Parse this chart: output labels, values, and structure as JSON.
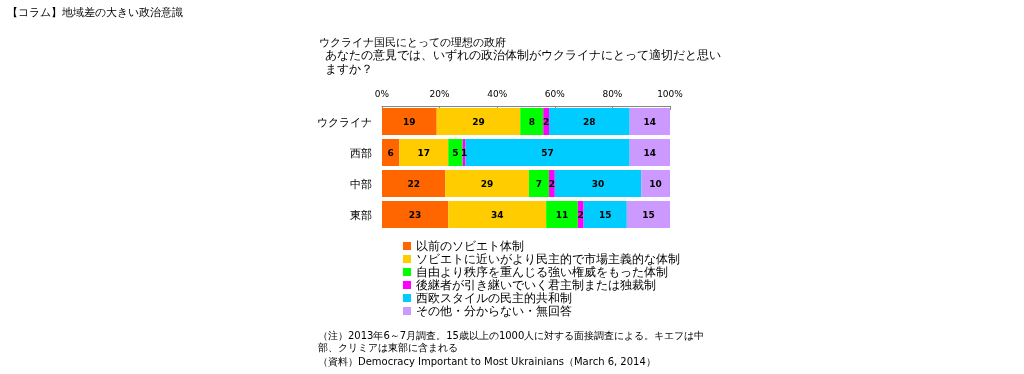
{
  "chart_data": {
    "type": "bar",
    "orientation": "horizontal",
    "stacked": true,
    "title": "【コラム】地域差の大きい政治意識",
    "subtitle": "ウクライナ国民にとっての理想の政府",
    "annotations": [
      "あなたの意見では、いずれの政治体制がウクライナにとって適切だと思いますか？",
      "（注）2013年6～7月調査。15歳以上の1000人に対する面接調査による。キエフは中部、クリミアは東部に含まれる",
      "（資料）Democracy Important to Most Ukrainians（March 6, 2014）"
    ],
    "categories": [
      "ウクライナ",
      "西部",
      "中部",
      "東部"
    ],
    "series": [
      {
        "name": "以前のソビエト体制",
        "color": "#ff6600",
        "values": [
          19,
          6,
          22,
          23
        ]
      },
      {
        "name": "ソビエトに近いがより民主的で市場主義的な体制",
        "color": "#ffcc00",
        "values": [
          29,
          17,
          29,
          34
        ]
      },
      {
        "name": "自由より秩序を重んじる強い権威をもった体制",
        "color": "#00ff00",
        "values": [
          8,
          5,
          7,
          11
        ]
      },
      {
        "name": "後継者が引き継いでいく君主制または独裁制",
        "color": "#ff00ff",
        "values": [
          2,
          1,
          2,
          2
        ]
      },
      {
        "name": "西欧スタイルの民主的共和制",
        "color": "#00ccff",
        "values": [
          28,
          57,
          30,
          15
        ]
      },
      {
        "name": "その他・分からない・無回答",
        "color": "#cc99ff",
        "values": [
          14,
          14,
          10,
          15
        ]
      }
    ],
    "xlim": [
      0,
      100
    ],
    "xticks": [
      {
        "value": 0,
        "label": "0%"
      },
      {
        "value": 20,
        "label": "20%"
      },
      {
        "value": 40,
        "label": "40%"
      },
      {
        "value": 60,
        "label": "60%"
      },
      {
        "value": 80,
        "label": "80%"
      },
      {
        "value": 100,
        "label": "100%"
      }
    ],
    "data_labels": true,
    "grid": false,
    "legend": "bottom"
  }
}
